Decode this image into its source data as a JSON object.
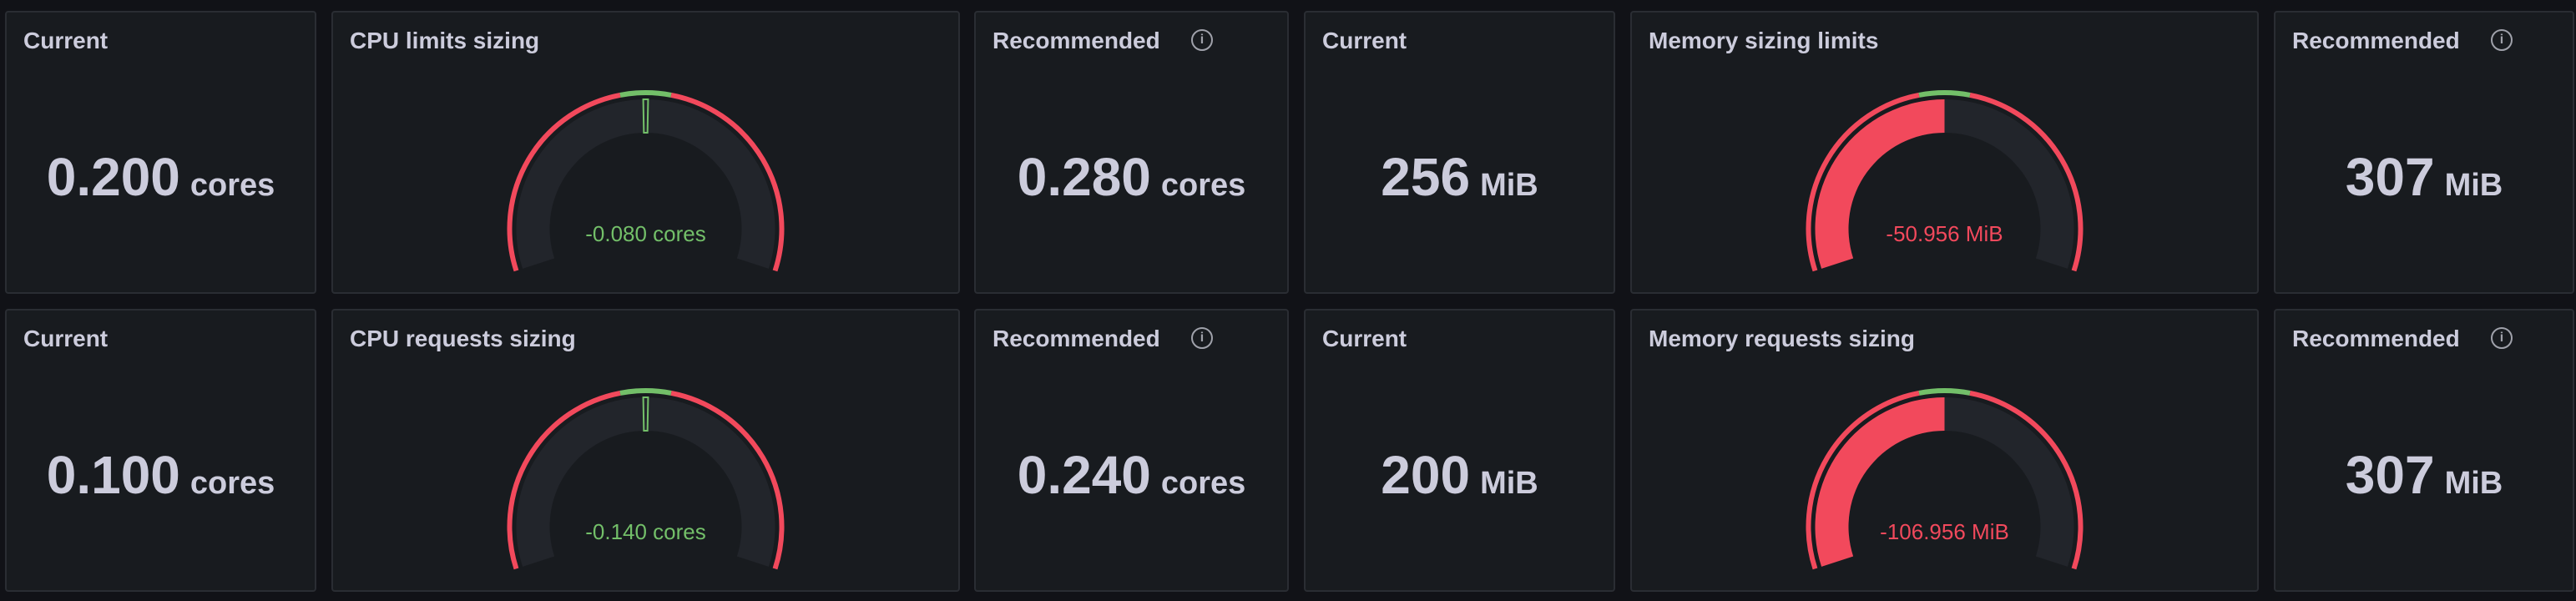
{
  "colors": {
    "red": "#f2495c",
    "green": "#73bf69",
    "track": "#22252b",
    "text": "#ccccdc"
  },
  "rows": [
    {
      "cpu_current": {
        "title": "Current",
        "value": "0.200",
        "unit": "cores"
      },
      "cpu_gauge": {
        "title": "CPU limits sizing",
        "value_text": "-0.080 cores",
        "value_color": "#73bf69",
        "fill_start": 0.495,
        "fill_end": 0.505,
        "fill_color": "#73bf69",
        "fill_style": "outline",
        "thresholds": [
          {
            "from": 0,
            "to": 0.45,
            "color": "#f2495c"
          },
          {
            "from": 0.45,
            "to": 0.55,
            "color": "#73bf69"
          },
          {
            "from": 0.55,
            "to": 1,
            "color": "#f2495c"
          }
        ]
      },
      "cpu_recommended": {
        "title": "Recommended",
        "value": "0.280",
        "unit": "cores",
        "icon": "info-icon"
      },
      "mem_current": {
        "title": "Current",
        "value": "256",
        "unit": "MiB"
      },
      "mem_gauge": {
        "title": "Memory sizing limits",
        "value_text": "-50.956 MiB",
        "value_color": "#f2495c",
        "fill_start": 0,
        "fill_end": 0.5,
        "fill_color": "#f2495c",
        "fill_style": "solid",
        "thresholds": [
          {
            "from": 0,
            "to": 0.45,
            "color": "#f2495c"
          },
          {
            "from": 0.45,
            "to": 0.55,
            "color": "#73bf69"
          },
          {
            "from": 0.55,
            "to": 1,
            "color": "#f2495c"
          }
        ]
      },
      "mem_recommended": {
        "title": "Recommended",
        "value": "307",
        "unit": "MiB",
        "icon": "info-icon"
      }
    },
    {
      "cpu_current": {
        "title": "Current",
        "value": "0.100",
        "unit": "cores"
      },
      "cpu_gauge": {
        "title": "CPU requests sizing",
        "value_text": "-0.140 cores",
        "value_color": "#73bf69",
        "fill_start": 0.495,
        "fill_end": 0.505,
        "fill_color": "#73bf69",
        "fill_style": "outline",
        "thresholds": [
          {
            "from": 0,
            "to": 0.45,
            "color": "#f2495c"
          },
          {
            "from": 0.45,
            "to": 0.55,
            "color": "#73bf69"
          },
          {
            "from": 0.55,
            "to": 1,
            "color": "#f2495c"
          }
        ]
      },
      "cpu_recommended": {
        "title": "Recommended",
        "value": "0.240",
        "unit": "cores",
        "icon": "info-icon"
      },
      "mem_current": {
        "title": "Current",
        "value": "200",
        "unit": "MiB"
      },
      "mem_gauge": {
        "title": "Memory requests sizing",
        "value_text": "-106.956 MiB",
        "value_color": "#f2495c",
        "fill_start": 0,
        "fill_end": 0.5,
        "fill_color": "#f2495c",
        "fill_style": "solid",
        "thresholds": [
          {
            "from": 0,
            "to": 0.45,
            "color": "#f2495c"
          },
          {
            "from": 0.45,
            "to": 0.55,
            "color": "#73bf69"
          },
          {
            "from": 0.55,
            "to": 1,
            "color": "#f2495c"
          }
        ]
      },
      "mem_recommended": {
        "title": "Recommended",
        "value": "307",
        "unit": "MiB",
        "icon": "info-icon"
      }
    }
  ]
}
